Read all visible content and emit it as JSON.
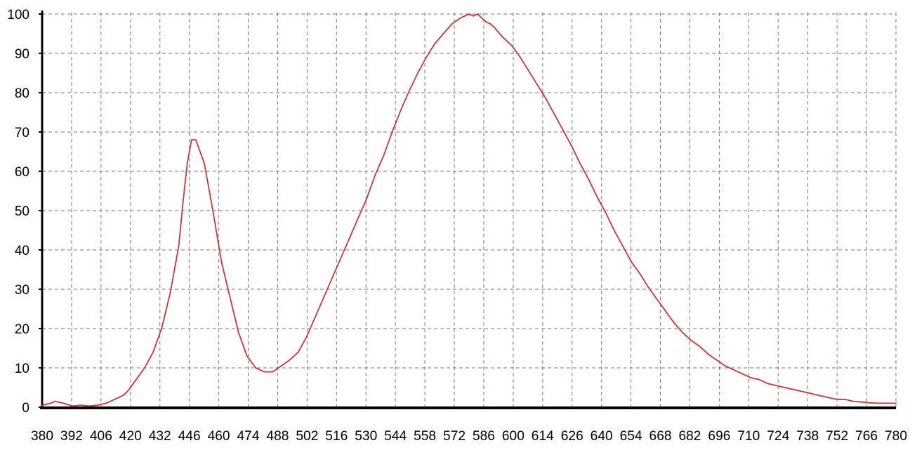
{
  "chart_data": {
    "type": "line",
    "title": "",
    "xlabel": "",
    "ylabel": "",
    "xlim": [
      380,
      780
    ],
    "ylim": [
      0,
      100
    ],
    "grid": true,
    "grid_style": "dashed",
    "x_ticks": [
      "380",
      "392",
      "406",
      "420",
      "432",
      "446",
      "460",
      "474",
      "488",
      "502",
      "516",
      "530",
      "544",
      "558",
      "572",
      "586",
      "600",
      "614",
      "626",
      "640",
      "654",
      "668",
      "682",
      "696",
      "710",
      "724",
      "738",
      "752",
      "766",
      "780"
    ],
    "y_ticks": [
      "0",
      "10",
      "20",
      "30",
      "40",
      "50",
      "60",
      "70",
      "80",
      "90",
      "100"
    ],
    "colors": {
      "line": "#c0393b",
      "grid": "#7a7a7a",
      "axis": "#000000"
    },
    "series": [
      {
        "x": [
          380,
          384,
          386,
          390,
          394,
          398,
          402,
          406,
          410,
          414,
          418,
          420,
          424,
          428,
          432,
          436,
          440,
          444,
          446,
          448,
          450,
          452,
          456,
          460,
          464,
          468,
          472,
          476,
          480,
          484,
          488,
          492,
          496,
          500,
          504,
          508,
          512,
          516,
          520,
          524,
          528,
          532,
          536,
          540,
          544,
          548,
          552,
          556,
          560,
          564,
          568,
          572,
          576,
          580,
          582,
          584,
          586,
          588,
          590,
          592,
          596,
          600,
          604,
          608,
          612,
          616,
          620,
          624,
          628,
          632,
          636,
          640,
          644,
          648,
          652,
          656,
          660,
          664,
          668,
          672,
          676,
          680,
          684,
          688,
          692,
          696,
          700,
          704,
          708,
          712,
          716,
          720,
          724,
          728,
          732,
          736,
          740,
          744,
          748,
          752,
          756,
          760,
          764,
          768,
          772,
          776,
          780
        ],
        "y": [
          0.5,
          1,
          1.5,
          1,
          0.3,
          0.5,
          0.3,
          0.5,
          1,
          2,
          3,
          4,
          7,
          10,
          14,
          20,
          29,
          41,
          52,
          62,
          68,
          68,
          62,
          50,
          37,
          28,
          19,
          13,
          10,
          9,
          9,
          10.5,
          12,
          14,
          18,
          23,
          28,
          33,
          38,
          43,
          48,
          53,
          59,
          64,
          70,
          75.5,
          80.5,
          85,
          89,
          92.5,
          95,
          97.5,
          99,
          100,
          99.5,
          100,
          99,
          98,
          97.5,
          96.5,
          94,
          92,
          89,
          85.5,
          82,
          78.5,
          74.5,
          70.5,
          66.5,
          62,
          58,
          53.5,
          49.5,
          45,
          41,
          37,
          34,
          30.5,
          27.5,
          24.5,
          21.5,
          19,
          17,
          15.5,
          13.5,
          12,
          10.5,
          9.5,
          8.5,
          7.5,
          7,
          6,
          5.5,
          5,
          4.5,
          4,
          3.5,
          3,
          2.5,
          2,
          2,
          1.5,
          1.3,
          1.1,
          1,
          1,
          1
        ]
      }
    ]
  }
}
